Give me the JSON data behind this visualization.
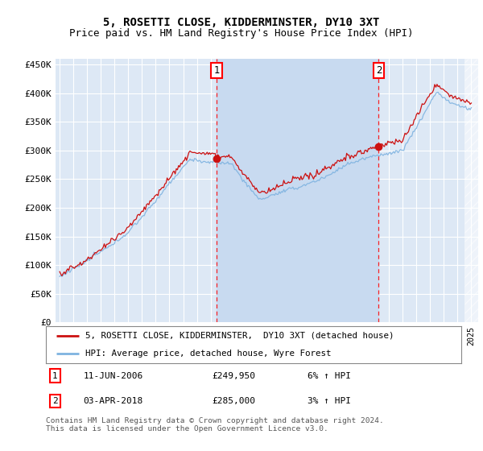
{
  "title": "5, ROSETTI CLOSE, KIDDERMINSTER, DY10 3XT",
  "subtitle": "Price paid vs. HM Land Registry's House Price Index (HPI)",
  "ylabel_ticks": [
    "£0",
    "£50K",
    "£100K",
    "£150K",
    "£200K",
    "£250K",
    "£300K",
    "£350K",
    "£400K",
    "£450K"
  ],
  "ytick_values": [
    0,
    50000,
    100000,
    150000,
    200000,
    250000,
    300000,
    350000,
    400000,
    450000
  ],
  "ylim": [
    0,
    460000
  ],
  "xlim_start": 1994.7,
  "xlim_end": 2025.5,
  "background_color": "#dde8f5",
  "grid_color": "#ffffff",
  "hpi_color": "#7fb3e0",
  "price_color": "#cc1111",
  "marker1_x": 2006.44,
  "marker2_x": 2018.25,
  "marker1_price": 249950,
  "marker2_price": 285000,
  "legend_label1": "5, ROSETTI CLOSE, KIDDERMINSTER,  DY10 3XT (detached house)",
  "legend_label2": "HPI: Average price, detached house, Wyre Forest",
  "annotation1_label": "11-JUN-2006",
  "annotation1_price": "£249,950",
  "annotation1_hpi": "6% ↑ HPI",
  "annotation2_label": "03-APR-2018",
  "annotation2_price": "£285,000",
  "annotation2_hpi": "3% ↑ HPI",
  "footer": "Contains HM Land Registry data © Crown copyright and database right 2024.\nThis data is licensed under the Open Government Licence v3.0.",
  "title_fontsize": 10,
  "subtitle_fontsize": 9,
  "shade_start": 2006.44,
  "shade_end": 2018.25,
  "shade_color": "#c8daf0",
  "hatch_start": 2024.5
}
